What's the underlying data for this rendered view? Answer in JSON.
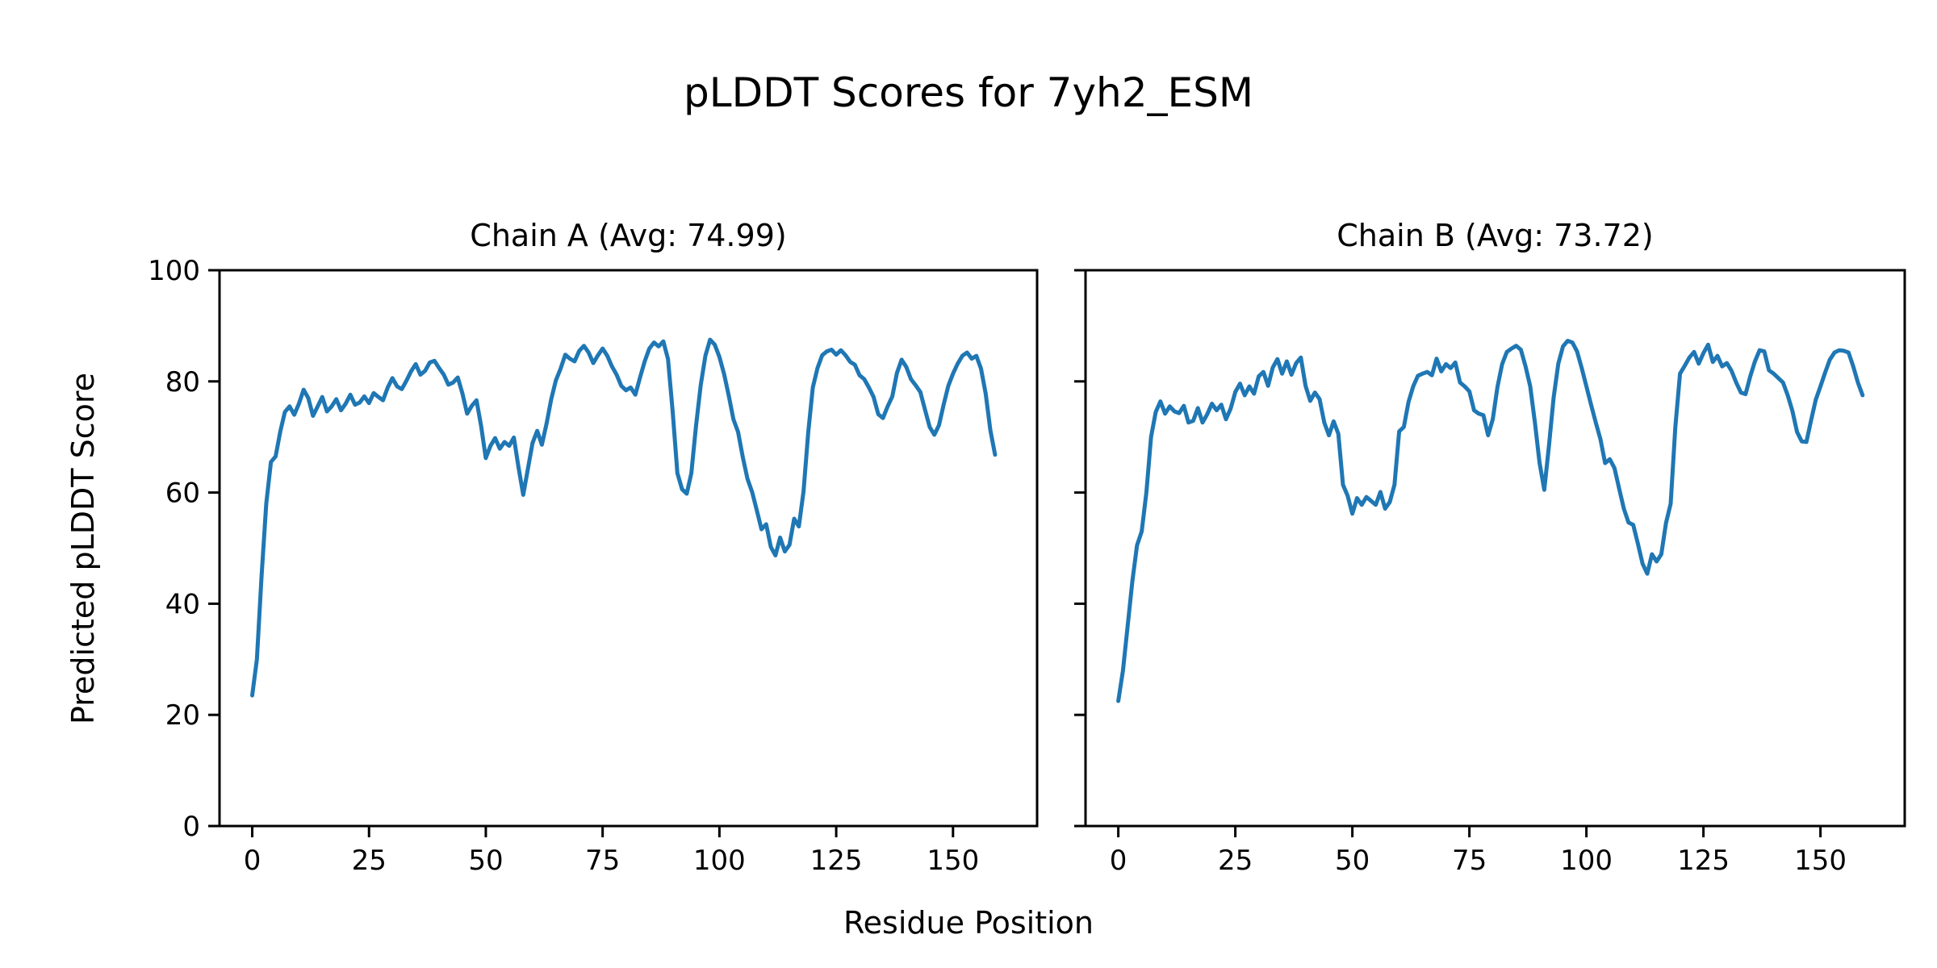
{
  "title": "pLDDT Scores for 7yh2_ESM",
  "xlabel": "Residue Position",
  "ylabel": "Predicted pLDDT Score",
  "line_color": "#1f77b4",
  "axis_color": "#000000",
  "chart_data": [
    {
      "type": "line",
      "title": "Chain A (Avg: 74.99)",
      "chain": "A",
      "average": 74.99,
      "xlim": [
        -7,
        168
      ],
      "ylim": [
        0,
        100
      ],
      "x_ticks": [
        0,
        25,
        50,
        75,
        100,
        125,
        150
      ],
      "y_ticks": [
        0,
        20,
        40,
        60,
        80,
        100
      ],
      "show_y_tick_labels": true,
      "x_start": 0,
      "values": [
        23.5,
        30.0,
        45.0,
        58.0,
        65.5,
        66.5,
        71.0,
        74.5,
        75.5,
        74.0,
        76.0,
        78.5,
        77.0,
        73.8,
        75.5,
        77.2,
        74.6,
        75.5,
        76.8,
        74.8,
        76.0,
        77.6,
        75.8,
        76.2,
        77.3,
        76.1,
        77.9,
        77.2,
        76.6,
        78.9,
        80.6,
        79.1,
        78.6,
        80.1,
        81.8,
        83.1,
        81.2,
        81.9,
        83.4,
        83.7,
        82.4,
        81.2,
        79.4,
        79.8,
        80.7,
        77.8,
        74.2,
        75.6,
        76.6,
        71.9,
        66.2,
        68.4,
        69.8,
        67.9,
        69.1,
        68.4,
        69.9,
        64.5,
        59.6,
        64.2,
        68.9,
        71.1,
        68.6,
        72.4,
        76.8,
        80.2,
        82.3,
        84.8,
        84.1,
        83.6,
        85.5,
        86.4,
        85.2,
        83.3,
        84.7,
        85.9,
        84.6,
        82.7,
        81.2,
        79.2,
        78.4,
        78.9,
        77.6,
        80.7,
        83.6,
        85.9,
        87.0,
        86.3,
        87.2,
        84.0,
        74.5,
        63.5,
        60.6,
        59.8,
        63.5,
        72.0,
        79.3,
        84.6,
        87.5,
        86.6,
        84.4,
        81.3,
        77.4,
        73.2,
        70.9,
        66.4,
        62.5,
        60.1,
        56.8,
        53.4,
        54.3,
        50.2,
        48.7,
        51.9,
        49.4,
        50.6,
        55.3,
        53.9,
        60.2,
        70.8,
        78.9,
        82.4,
        84.7,
        85.4,
        85.7,
        84.8,
        85.6,
        84.7,
        83.5,
        83.0,
        81.1,
        80.4,
        78.9,
        77.2,
        74.1,
        73.4,
        75.5,
        77.3,
        81.5,
        83.9,
        82.6,
        80.4,
        79.3,
        78.1,
        74.9,
        71.8,
        70.4,
        72.1,
        75.8,
        79.2,
        81.4,
        83.2,
        84.6,
        85.2,
        84.1,
        84.6,
        82.3,
        77.8,
        71.2,
        66.8
      ]
    },
    {
      "type": "line",
      "title": "Chain B (Avg: 73.72)",
      "chain": "B",
      "average": 73.72,
      "xlim": [
        -7,
        168
      ],
      "ylim": [
        0,
        100
      ],
      "x_ticks": [
        0,
        25,
        50,
        75,
        100,
        125,
        150
      ],
      "y_ticks": [
        0,
        20,
        40,
        60,
        80,
        100
      ],
      "show_y_tick_labels": false,
      "x_start": 0,
      "values": [
        22.5,
        28.0,
        36.0,
        44.0,
        50.5,
        53.0,
        60.0,
        70.0,
        74.5,
        76.4,
        74.2,
        75.5,
        74.6,
        74.3,
        75.6,
        72.6,
        72.9,
        75.2,
        72.6,
        74.1,
        76.0,
        74.8,
        75.8,
        73.2,
        75.1,
        78.1,
        79.6,
        77.5,
        79.1,
        77.8,
        80.9,
        81.7,
        79.2,
        82.5,
        84.0,
        81.4,
        83.6,
        81.2,
        83.3,
        84.3,
        79.2,
        76.5,
        78.0,
        76.8,
        72.6,
        70.3,
        72.8,
        70.6,
        61.4,
        59.4,
        56.2,
        59.0,
        57.8,
        59.2,
        58.5,
        57.8,
        60.1,
        57.1,
        58.3,
        61.4,
        71.0,
        71.8,
        76.3,
        79.1,
        81.0,
        81.4,
        81.7,
        81.1,
        84.1,
        81.8,
        83.1,
        82.4,
        83.4,
        79.8,
        79.1,
        78.2,
        74.8,
        74.2,
        73.9,
        70.3,
        73.2,
        79.0,
        83.1,
        85.3,
        85.9,
        86.4,
        85.7,
        82.7,
        79.1,
        72.6,
        65.3,
        60.5,
        68.4,
        77.1,
        83.2,
        86.3,
        87.3,
        87.0,
        85.4,
        82.4,
        79.1,
        75.8,
        72.6,
        69.6,
        65.3,
        66.0,
        64.4,
        60.7,
        57.1,
        54.6,
        54.2,
        50.8,
        47.2,
        45.4,
        48.9,
        47.6,
        48.9,
        54.5,
        58.0,
        71.8,
        81.4,
        82.8,
        84.3,
        85.3,
        83.2,
        85.1,
        86.6,
        83.5,
        84.6,
        82.7,
        83.3,
        81.9,
        79.8,
        78.0,
        77.7,
        80.9,
        83.6,
        85.6,
        85.4,
        82.0,
        81.4,
        80.6,
        79.8,
        77.5,
        74.7,
        70.9,
        69.2,
        69.1,
        73.0,
        76.7,
        79.1,
        81.6,
        83.9,
        85.2,
        85.6,
        85.5,
        85.2,
        82.7,
        79.8,
        77.5
      ]
    }
  ]
}
